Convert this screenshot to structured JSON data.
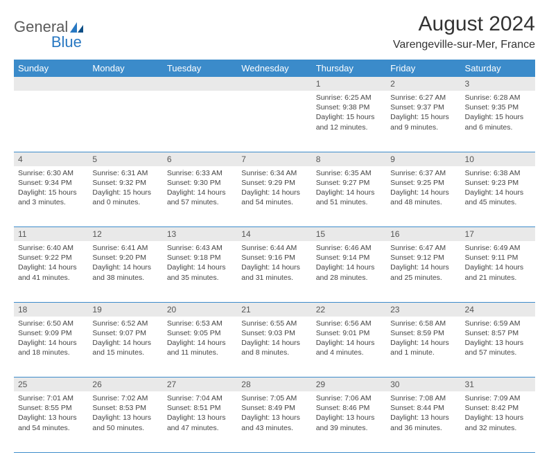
{
  "logo": {
    "text1": "General",
    "text2": "Blue"
  },
  "title": "August 2024",
  "location": "Varengeville-sur-Mer, France",
  "colors": {
    "header_bg": "#3b8bca",
    "header_text": "#ffffff",
    "daynum_bg": "#e9e9e9",
    "row_border": "#3b8bca",
    "body_text": "#444444",
    "logo_gray": "#5a5a5a",
    "logo_blue": "#2878c2"
  },
  "typography": {
    "title_fontsize": 30,
    "location_fontsize": 16,
    "header_fontsize": 13,
    "daynum_fontsize": 12,
    "cell_fontsize": 10.5
  },
  "layout": {
    "columns": 7,
    "rows": 5,
    "first_day_col": 4
  },
  "weekdays": [
    "Sunday",
    "Monday",
    "Tuesday",
    "Wednesday",
    "Thursday",
    "Friday",
    "Saturday"
  ],
  "weeks": [
    [
      null,
      null,
      null,
      null,
      {
        "n": "1",
        "sr": "Sunrise: 6:25 AM",
        "ss": "Sunset: 9:38 PM",
        "dl": "Daylight: 15 hours and 12 minutes."
      },
      {
        "n": "2",
        "sr": "Sunrise: 6:27 AM",
        "ss": "Sunset: 9:37 PM",
        "dl": "Daylight: 15 hours and 9 minutes."
      },
      {
        "n": "3",
        "sr": "Sunrise: 6:28 AM",
        "ss": "Sunset: 9:35 PM",
        "dl": "Daylight: 15 hours and 6 minutes."
      }
    ],
    [
      {
        "n": "4",
        "sr": "Sunrise: 6:30 AM",
        "ss": "Sunset: 9:34 PM",
        "dl": "Daylight: 15 hours and 3 minutes."
      },
      {
        "n": "5",
        "sr": "Sunrise: 6:31 AM",
        "ss": "Sunset: 9:32 PM",
        "dl": "Daylight: 15 hours and 0 minutes."
      },
      {
        "n": "6",
        "sr": "Sunrise: 6:33 AM",
        "ss": "Sunset: 9:30 PM",
        "dl": "Daylight: 14 hours and 57 minutes."
      },
      {
        "n": "7",
        "sr": "Sunrise: 6:34 AM",
        "ss": "Sunset: 9:29 PM",
        "dl": "Daylight: 14 hours and 54 minutes."
      },
      {
        "n": "8",
        "sr": "Sunrise: 6:35 AM",
        "ss": "Sunset: 9:27 PM",
        "dl": "Daylight: 14 hours and 51 minutes."
      },
      {
        "n": "9",
        "sr": "Sunrise: 6:37 AM",
        "ss": "Sunset: 9:25 PM",
        "dl": "Daylight: 14 hours and 48 minutes."
      },
      {
        "n": "10",
        "sr": "Sunrise: 6:38 AM",
        "ss": "Sunset: 9:23 PM",
        "dl": "Daylight: 14 hours and 45 minutes."
      }
    ],
    [
      {
        "n": "11",
        "sr": "Sunrise: 6:40 AM",
        "ss": "Sunset: 9:22 PM",
        "dl": "Daylight: 14 hours and 41 minutes."
      },
      {
        "n": "12",
        "sr": "Sunrise: 6:41 AM",
        "ss": "Sunset: 9:20 PM",
        "dl": "Daylight: 14 hours and 38 minutes."
      },
      {
        "n": "13",
        "sr": "Sunrise: 6:43 AM",
        "ss": "Sunset: 9:18 PM",
        "dl": "Daylight: 14 hours and 35 minutes."
      },
      {
        "n": "14",
        "sr": "Sunrise: 6:44 AM",
        "ss": "Sunset: 9:16 PM",
        "dl": "Daylight: 14 hours and 31 minutes."
      },
      {
        "n": "15",
        "sr": "Sunrise: 6:46 AM",
        "ss": "Sunset: 9:14 PM",
        "dl": "Daylight: 14 hours and 28 minutes."
      },
      {
        "n": "16",
        "sr": "Sunrise: 6:47 AM",
        "ss": "Sunset: 9:12 PM",
        "dl": "Daylight: 14 hours and 25 minutes."
      },
      {
        "n": "17",
        "sr": "Sunrise: 6:49 AM",
        "ss": "Sunset: 9:11 PM",
        "dl": "Daylight: 14 hours and 21 minutes."
      }
    ],
    [
      {
        "n": "18",
        "sr": "Sunrise: 6:50 AM",
        "ss": "Sunset: 9:09 PM",
        "dl": "Daylight: 14 hours and 18 minutes."
      },
      {
        "n": "19",
        "sr": "Sunrise: 6:52 AM",
        "ss": "Sunset: 9:07 PM",
        "dl": "Daylight: 14 hours and 15 minutes."
      },
      {
        "n": "20",
        "sr": "Sunrise: 6:53 AM",
        "ss": "Sunset: 9:05 PM",
        "dl": "Daylight: 14 hours and 11 minutes."
      },
      {
        "n": "21",
        "sr": "Sunrise: 6:55 AM",
        "ss": "Sunset: 9:03 PM",
        "dl": "Daylight: 14 hours and 8 minutes."
      },
      {
        "n": "22",
        "sr": "Sunrise: 6:56 AM",
        "ss": "Sunset: 9:01 PM",
        "dl": "Daylight: 14 hours and 4 minutes."
      },
      {
        "n": "23",
        "sr": "Sunrise: 6:58 AM",
        "ss": "Sunset: 8:59 PM",
        "dl": "Daylight: 14 hours and 1 minute."
      },
      {
        "n": "24",
        "sr": "Sunrise: 6:59 AM",
        "ss": "Sunset: 8:57 PM",
        "dl": "Daylight: 13 hours and 57 minutes."
      }
    ],
    [
      {
        "n": "25",
        "sr": "Sunrise: 7:01 AM",
        "ss": "Sunset: 8:55 PM",
        "dl": "Daylight: 13 hours and 54 minutes."
      },
      {
        "n": "26",
        "sr": "Sunrise: 7:02 AM",
        "ss": "Sunset: 8:53 PM",
        "dl": "Daylight: 13 hours and 50 minutes."
      },
      {
        "n": "27",
        "sr": "Sunrise: 7:04 AM",
        "ss": "Sunset: 8:51 PM",
        "dl": "Daylight: 13 hours and 47 minutes."
      },
      {
        "n": "28",
        "sr": "Sunrise: 7:05 AM",
        "ss": "Sunset: 8:49 PM",
        "dl": "Daylight: 13 hours and 43 minutes."
      },
      {
        "n": "29",
        "sr": "Sunrise: 7:06 AM",
        "ss": "Sunset: 8:46 PM",
        "dl": "Daylight: 13 hours and 39 minutes."
      },
      {
        "n": "30",
        "sr": "Sunrise: 7:08 AM",
        "ss": "Sunset: 8:44 PM",
        "dl": "Daylight: 13 hours and 36 minutes."
      },
      {
        "n": "31",
        "sr": "Sunrise: 7:09 AM",
        "ss": "Sunset: 8:42 PM",
        "dl": "Daylight: 13 hours and 32 minutes."
      }
    ]
  ]
}
